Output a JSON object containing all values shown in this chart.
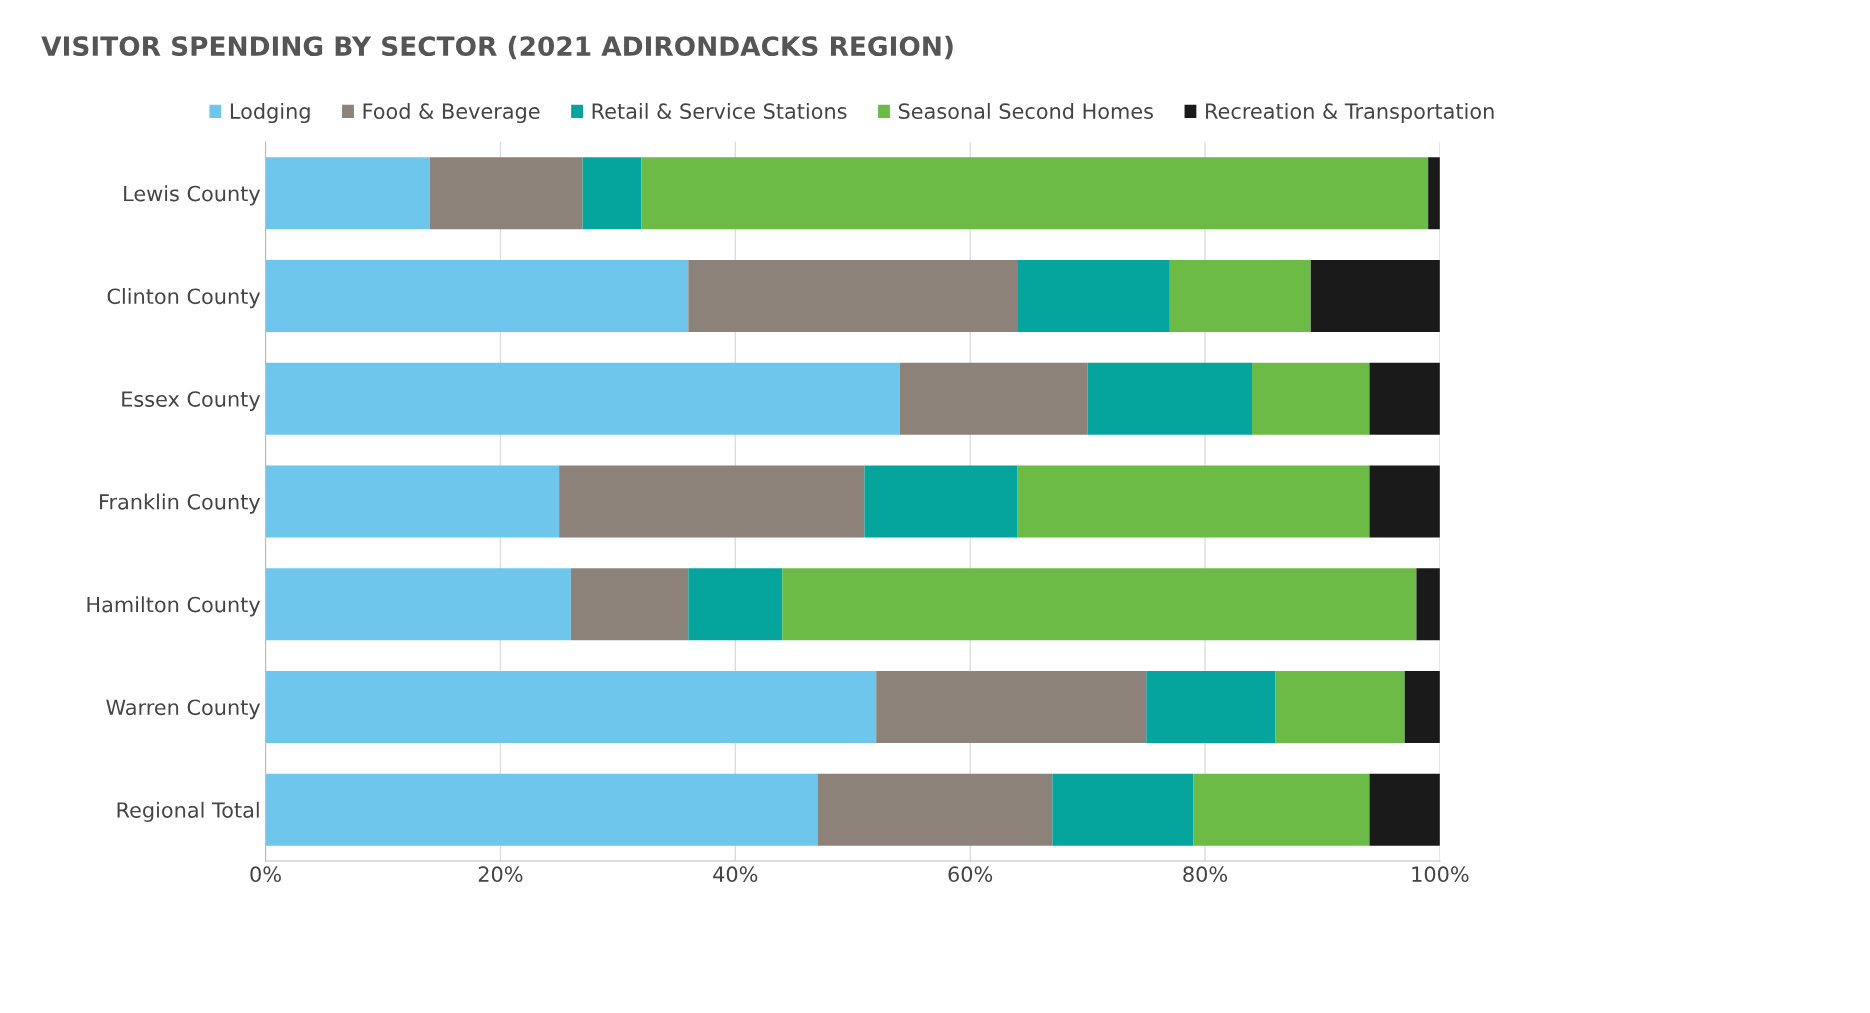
{
  "chart_data": {
    "type": "bar",
    "orientation": "horizontal",
    "stacked": true,
    "title": "VISITOR SPENDING BY SECTOR (2021 ADIRONDACKS REGION)",
    "categories": [
      "Lewis County",
      "Clinton County",
      "Essex County",
      "Franklin County",
      "Hamilton County",
      "Warren County",
      "Regional Total"
    ],
    "series": [
      {
        "name": "Lodging",
        "color": "#6ec6ec",
        "values": [
          14,
          36,
          54,
          25,
          26,
          52,
          47
        ]
      },
      {
        "name": "Food & Beverage",
        "color": "#8c8279",
        "values": [
          13,
          28,
          16,
          26,
          10,
          23,
          20
        ]
      },
      {
        "name": "Retail & Service Stations",
        "color": "#05a49c",
        "values": [
          5,
          13,
          14,
          13,
          8,
          11,
          12
        ]
      },
      {
        "name": "Seasonal Second Homes",
        "color": "#6cbb47",
        "values": [
          67,
          12,
          10,
          30,
          54,
          11,
          15
        ]
      },
      {
        "name": "Recreation & Transportation",
        "color": "#1a1a1a",
        "values": [
          1,
          11,
          6,
          6,
          2,
          3,
          6
        ]
      }
    ],
    "xlim": [
      0,
      100
    ],
    "xticks": [
      {
        "value": 0,
        "label": "0%"
      },
      {
        "value": 20,
        "label": "20%"
      },
      {
        "value": 40,
        "label": "40%"
      },
      {
        "value": 60,
        "label": "60%"
      },
      {
        "value": 80,
        "label": "80%"
      },
      {
        "value": 100,
        "label": "100%"
      }
    ],
    "grid": "x",
    "legend": "top"
  }
}
